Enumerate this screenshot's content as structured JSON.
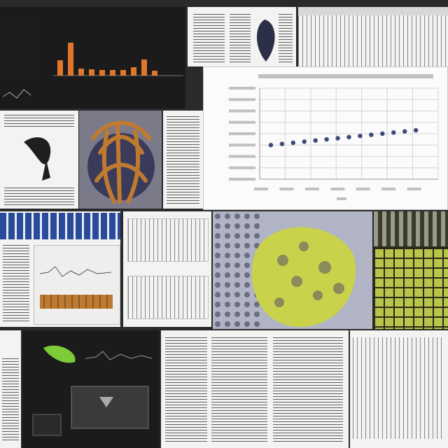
{
  "chart_data": {
    "type": "scatter",
    "title": "",
    "xlabel": "",
    "ylabel": "",
    "x": [
      1,
      2,
      3,
      4,
      5,
      6,
      7,
      8,
      9,
      10,
      11,
      12,
      13,
      14
    ],
    "y": [
      3.0,
      3.1,
      3.2,
      3.3,
      3.4,
      3.5,
      3.6,
      3.7,
      3.8,
      3.9,
      4.0,
      4.1,
      4.2,
      4.3
    ],
    "ylim": [
      0,
      8
    ],
    "grid": true
  },
  "colors": {
    "bar_orange": "#e0772a",
    "point_blue": "#3a4a7a",
    "lime": "#c9d24a",
    "accent_blue": "#2a4a9a",
    "copper": "#c07a30"
  },
  "dark_bars": {
    "values": [
      2.2,
      4.7,
      1.0,
      0.9,
      0.8,
      0.8,
      0.8,
      1.2,
      2.3,
      0.7
    ]
  }
}
